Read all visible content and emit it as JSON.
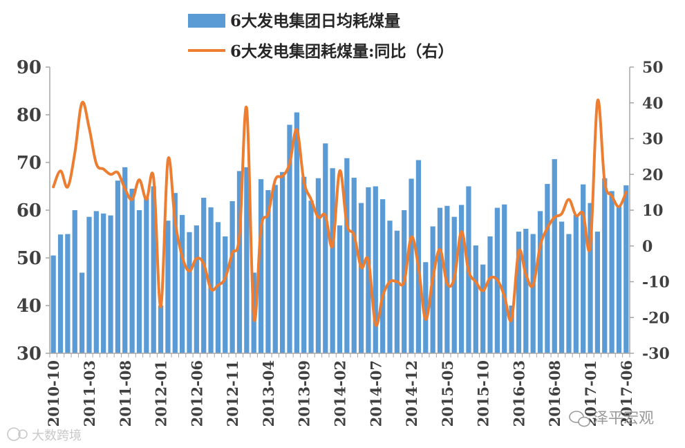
{
  "chart_data": {
    "type": "bar+line",
    "categories": [
      "2010-10",
      "2010-11",
      "2010-12",
      "2011-01",
      "2011-02",
      "2011-03",
      "2011-04",
      "2011-05",
      "2011-06",
      "2011-07",
      "2011-08",
      "2011-09",
      "2011-10",
      "2011-11",
      "2011-12",
      "2012-01",
      "2012-02",
      "2012-03",
      "2012-04",
      "2012-05",
      "2012-06",
      "2012-07",
      "2012-08",
      "2012-09",
      "2012-10",
      "2012-11",
      "2012-12",
      "2013-01",
      "2013-02",
      "2013-03",
      "2013-04",
      "2013-05",
      "2013-06",
      "2013-07",
      "2013-08",
      "2013-09",
      "2013-10",
      "2013-11",
      "2013-12",
      "2014-01",
      "2014-02",
      "2014-03",
      "2014-04",
      "2014-05",
      "2014-06",
      "2014-07",
      "2014-08",
      "2014-09",
      "2014-10",
      "2014-11",
      "2014-12",
      "2015-01",
      "2015-02",
      "2015-03",
      "2015-04",
      "2015-05",
      "2015-06",
      "2015-07",
      "2015-08",
      "2015-09",
      "2015-10",
      "2015-11",
      "2015-12",
      "2016-01",
      "2016-02",
      "2016-03",
      "2016-04",
      "2016-05",
      "2016-06",
      "2016-07",
      "2016-08",
      "2016-09",
      "2016-10",
      "2016-11",
      "2016-12",
      "2017-01",
      "2017-02",
      "2017-03",
      "2017-04",
      "2017-05",
      "2017-06"
    ],
    "xticks": [
      "2010-10",
      "2011-03",
      "2011-08",
      "2012-01",
      "2012-06",
      "2012-11",
      "2013-04",
      "2013-09",
      "2014-02",
      "2014-07",
      "2014-12",
      "2015-05",
      "2015-10",
      "2016-03",
      "2016-08",
      "2017-01",
      "2017-06"
    ],
    "series": [
      {
        "name": "6大发电集团日均耗煤量",
        "axis": "left",
        "kind": "bar",
        "color": "#5B9BD5",
        "values": [
          50.5,
          54.9,
          55.0,
          60.0,
          46.9,
          58.6,
          59.8,
          59.3,
          58.9,
          66.2,
          69.0,
          64.5,
          60.0,
          62.5,
          65.0,
          40.0,
          57.8,
          63.6,
          59.0,
          55.4,
          56.8,
          62.6,
          60.6,
          57.5,
          54.5,
          61.9,
          68.2,
          69.0,
          46.9,
          66.5,
          64.2,
          65.3,
          68.0,
          77.9,
          80.5,
          67.0,
          62.0,
          66.7,
          74.0,
          68.8,
          56.8,
          70.9,
          66.8,
          61.5,
          64.8,
          65.0,
          62.3,
          57.8,
          55.7,
          60.0,
          66.6,
          70.5,
          49.1,
          56.6,
          60.5,
          60.9,
          58.6,
          61.1,
          65.0,
          52.6,
          48.6,
          54.5,
          60.5,
          61.2,
          40.0,
          55.5,
          56.1,
          55.0,
          59.8,
          65.5,
          70.7,
          57.6,
          55.0,
          59.0,
          65.4,
          61.5,
          55.5,
          66.7,
          64.0,
          61.0,
          65.2
        ]
      },
      {
        "name": "6大发电集团耗煤量:同比（右）",
        "axis": "right",
        "kind": "line",
        "color": "#ED7D31",
        "values": [
          16.5,
          21.0,
          16.5,
          26.0,
          40.0,
          33.0,
          23.0,
          21.5,
          20.0,
          20.5,
          16.0,
          13.0,
          18.5,
          13.0,
          19.0,
          -17.0,
          24.0,
          7.0,
          -3.0,
          -7.0,
          -3.5,
          -5.0,
          -12.0,
          -11.0,
          -9.0,
          -2.0,
          3.0,
          38.5,
          -20.0,
          5.0,
          9.0,
          18.5,
          19.5,
          23.0,
          32.5,
          18.0,
          13.0,
          8.0,
          8.5,
          0.0,
          21.0,
          6.0,
          3.0,
          -6.0,
          -4.0,
          -22.0,
          -14.0,
          -10.0,
          -10.0,
          -10.0,
          2.5,
          -6.0,
          -20.5,
          -9.0,
          -1.0,
          -10.5,
          -9.0,
          4.0,
          -7.0,
          -10.0,
          -12.5,
          -9.0,
          -9.5,
          -14.0,
          -20.5,
          -1.5,
          -8.0,
          -11.0,
          0.0,
          5.0,
          8.0,
          9.0,
          13.0,
          8.5,
          9.0,
          0.0,
          40.5,
          18.0,
          14.0,
          11.0,
          15.0
        ]
      }
    ],
    "y_left": {
      "min": 30,
      "max": 90,
      "ticks": [
        30,
        40,
        50,
        60,
        70,
        80,
        90
      ]
    },
    "y_right": {
      "min": -30,
      "max": 50,
      "ticks": [
        -30,
        -20,
        -10,
        0,
        10,
        20,
        30,
        40,
        50
      ]
    },
    "legend": {
      "placement": "top"
    },
    "grid": false
  },
  "watermarks": {
    "right": "泽平宏观",
    "left": "大数跨境"
  },
  "colors": {
    "axis": "#a6a6a6",
    "text": "#404040"
  }
}
